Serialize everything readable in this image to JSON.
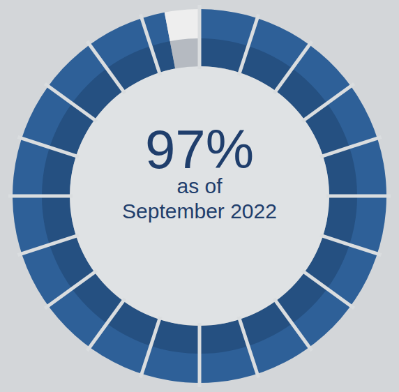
{
  "chart_data": {
    "type": "donut",
    "values": [
      97,
      3
    ],
    "value_labels": [
      "97%",
      null
    ],
    "colors": [
      "#2e6098",
      "#eeeeee"
    ],
    "annotations": [
      "as of",
      "September 2022"
    ]
  }
}
